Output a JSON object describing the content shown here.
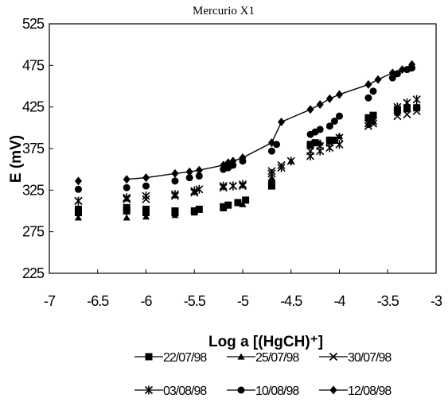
{
  "chart_data": {
    "type": "scatter",
    "title": "Mercurio X1",
    "xlabel": "Log a [(HgCH)⁺]",
    "ylabel": "E (mV)",
    "xlim": [
      -7,
      -3
    ],
    "ylim": [
      225,
      525
    ],
    "xticks": [
      -7,
      -6.5,
      -6,
      -5.5,
      -5,
      -4.5,
      -4,
      -3.5,
      -3
    ],
    "yticks": [
      225,
      275,
      325,
      375,
      425,
      475,
      525
    ],
    "x_tick_labels": [
      "-7",
      "-6.5",
      "-6",
      "-5.5",
      "-5",
      "-4.5",
      "-4",
      "-3.5",
      "-3"
    ],
    "y_tick_labels": [
      "225",
      "275",
      "325",
      "375",
      "425",
      "475",
      "525"
    ],
    "legend_position": "bottom",
    "series": [
      {
        "name": "22/07/98",
        "marker": "square",
        "line": false,
        "color": "#000000",
        "points": [
          [
            -6.7,
            298
          ],
          [
            -6.7,
            302
          ],
          [
            -6.2,
            300
          ],
          [
            -6.2,
            304
          ],
          [
            -6.0,
            298
          ],
          [
            -6.0,
            302
          ],
          [
            -5.7,
            298
          ],
          [
            -5.7,
            300
          ],
          [
            -5.5,
            300
          ],
          [
            -5.45,
            302
          ],
          [
            -5.2,
            305
          ],
          [
            -5.15,
            307
          ],
          [
            -5.05,
            310
          ],
          [
            -4.97,
            313
          ],
          [
            -4.7,
            330
          ],
          [
            -4.7,
            333
          ],
          [
            -4.3,
            380
          ],
          [
            -4.25,
            382
          ],
          [
            -4.1,
            385
          ],
          [
            -4.05,
            385
          ],
          [
            -3.7,
            412
          ],
          [
            -3.65,
            415
          ],
          [
            -3.4,
            422
          ],
          [
            -3.3,
            424
          ],
          [
            -3.2,
            424
          ]
        ]
      },
      {
        "name": "25/07/98",
        "marker": "triangle",
        "line": false,
        "color": "#000000",
        "points": [
          [
            -6.7,
            292
          ],
          [
            -6.2,
            292
          ],
          [
            -6.0,
            293
          ],
          [
            -5.7,
            295
          ],
          [
            -5.5,
            298
          ],
          [
            -5.2,
            303
          ],
          [
            -5.0,
            308
          ],
          [
            -4.7,
            340
          ],
          [
            -4.5,
            360
          ],
          [
            -4.3,
            378
          ],
          [
            -4.2,
            382
          ],
          [
            -4.1,
            386
          ],
          [
            -4.0,
            390
          ],
          [
            -3.7,
            405
          ],
          [
            -3.65,
            408
          ],
          [
            -3.4,
            418
          ],
          [
            -3.3,
            422
          ],
          [
            -3.2,
            426
          ]
        ]
      },
      {
        "name": "30/07/98",
        "marker": "x",
        "line": false,
        "color": "#000000",
        "points": [
          [
            -6.7,
            312
          ],
          [
            -6.2,
            314
          ],
          [
            -6.0,
            314
          ],
          [
            -5.7,
            318
          ],
          [
            -5.5,
            322
          ],
          [
            -5.2,
            328
          ],
          [
            -5.1,
            330
          ],
          [
            -5.0,
            330
          ],
          [
            -4.7,
            348
          ],
          [
            -4.6,
            355
          ],
          [
            -4.3,
            372
          ],
          [
            -4.2,
            378
          ],
          [
            -4.1,
            382
          ],
          [
            -4.0,
            388
          ],
          [
            -3.7,
            402
          ],
          [
            -3.65,
            405
          ],
          [
            -3.4,
            414
          ],
          [
            -3.3,
            416
          ],
          [
            -3.2,
            420
          ]
        ]
      },
      {
        "name": "03/08/98",
        "marker": "asterisk",
        "line": false,
        "color": "#000000",
        "points": [
          [
            -6.7,
            312
          ],
          [
            -6.2,
            316
          ],
          [
            -6.0,
            318
          ],
          [
            -5.7,
            320
          ],
          [
            -5.5,
            324
          ],
          [
            -5.45,
            326
          ],
          [
            -5.2,
            330
          ],
          [
            -5.1,
            330
          ],
          [
            -5.0,
            332
          ],
          [
            -4.7,
            345
          ],
          [
            -4.6,
            352
          ],
          [
            -4.5,
            360
          ],
          [
            -4.3,
            366
          ],
          [
            -4.2,
            372
          ],
          [
            -4.1,
            376
          ],
          [
            -4.0,
            380
          ],
          [
            -3.7,
            405
          ],
          [
            -3.65,
            408
          ],
          [
            -3.4,
            425
          ],
          [
            -3.3,
            430
          ],
          [
            -3.2,
            434
          ]
        ]
      },
      {
        "name": "10/08/98",
        "marker": "circle",
        "line": false,
        "color": "#000000",
        "points": [
          [
            -6.7,
            326
          ],
          [
            -6.2,
            328
          ],
          [
            -6.0,
            330
          ],
          [
            -5.7,
            336
          ],
          [
            -5.55,
            340
          ],
          [
            -5.45,
            342
          ],
          [
            -5.2,
            350
          ],
          [
            -5.15,
            352
          ],
          [
            -5.1,
            355
          ],
          [
            -5.0,
            360
          ],
          [
            -4.7,
            372
          ],
          [
            -4.65,
            380
          ],
          [
            -4.3,
            392
          ],
          [
            -4.25,
            395
          ],
          [
            -4.2,
            398
          ],
          [
            -4.1,
            402
          ],
          [
            -4.05,
            408
          ],
          [
            -4.0,
            414
          ],
          [
            -3.7,
            436
          ],
          [
            -3.65,
            444
          ],
          [
            -3.45,
            460
          ],
          [
            -3.4,
            465
          ],
          [
            -3.3,
            470
          ],
          [
            -3.25,
            472
          ]
        ]
      },
      {
        "name": "12/08/98",
        "marker": "diamond",
        "line": true,
        "color": "#000000",
        "points": [
          [
            -6.7,
            336
          ],
          [
            -6.2,
            338
          ],
          [
            -6.0,
            340
          ],
          [
            -5.7,
            345
          ],
          [
            -5.55,
            347
          ],
          [
            -5.45,
            349
          ],
          [
            -5.2,
            355
          ],
          [
            -5.15,
            358
          ],
          [
            -5.1,
            360
          ],
          [
            -5.0,
            364
          ],
          [
            -4.7,
            382
          ],
          [
            -4.6,
            407
          ],
          [
            -4.3,
            422
          ],
          [
            -4.2,
            428
          ],
          [
            -4.1,
            435
          ],
          [
            -4.0,
            440
          ],
          [
            -3.7,
            452
          ],
          [
            -3.6,
            458
          ],
          [
            -3.45,
            466
          ],
          [
            -3.35,
            470
          ],
          [
            -3.25,
            476
          ]
        ]
      }
    ]
  }
}
